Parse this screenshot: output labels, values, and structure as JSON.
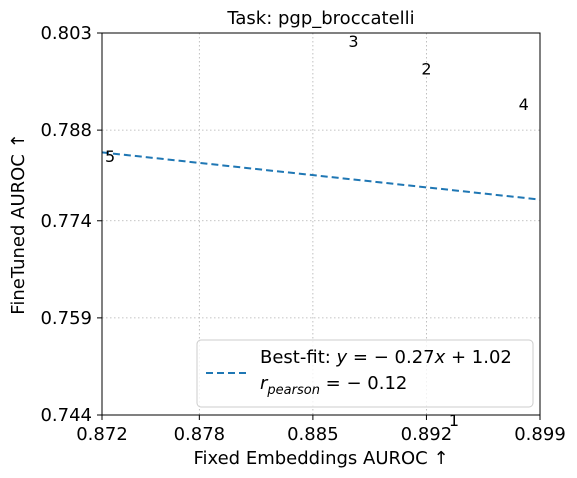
{
  "chart_data": {
    "type": "scatter",
    "title": "Task: pgp_broccatelli",
    "xlabel": "Fixed Embeddings AUROC ↑",
    "ylabel": "FineTuned AUROC ↑",
    "xlim": [
      0.872,
      0.899
    ],
    "ylim": [
      0.744,
      0.803
    ],
    "xticks": [
      "0.872",
      "0.878",
      "0.885",
      "0.892",
      "0.899"
    ],
    "yticks": [
      "0.744",
      "0.759",
      "0.774",
      "0.788",
      "0.803"
    ],
    "grid": true,
    "legend_position": "lower-right",
    "points": [
      {
        "label": "1",
        "x": 0.8937,
        "y": 0.7432
      },
      {
        "label": "2",
        "x": 0.892,
        "y": 0.7975
      },
      {
        "label": "3",
        "x": 0.8875,
        "y": 0.8018
      },
      {
        "label": "4",
        "x": 0.898,
        "y": 0.792
      },
      {
        "label": "5",
        "x": 0.8725,
        "y": 0.784
      }
    ],
    "fit": {
      "slope": -0.27,
      "intercept": 1.02,
      "color": "#1f77b4",
      "style": "dashed"
    },
    "legend": {
      "line1": "Best-fit: y = − 0.27x + 1.02",
      "line2": "r_pearson = − 0.12"
    }
  }
}
